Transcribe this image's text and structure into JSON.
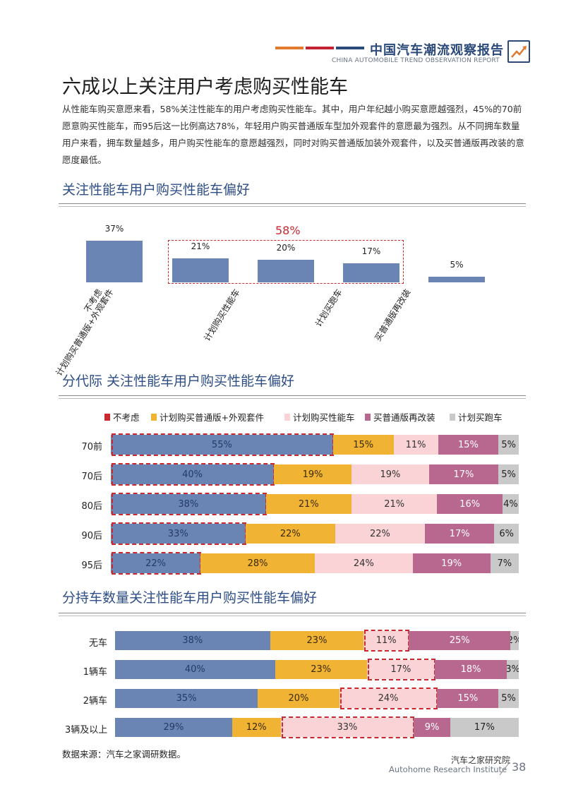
{
  "header": {
    "title": "中国汽车潮流观察报告",
    "subtitle": "CHINA AUTOMOBILE TREND OBSERVATION REPORT",
    "stripe_colors": [
      "#e07a2e",
      "#c52234",
      "#2b4a7a"
    ],
    "logo_icon": "trend-up-arrow-icon"
  },
  "page_title": "六成以上关注用户考虑购买性能车",
  "paragraph": "从性能车购买意愿来看，58%关注性能车的用户考虑购买性能车。其中，用户年纪越小购买意愿越强烈，45%的70前愿意购买性能车，而95后这一比例高达78%，年轻用户购买普通版车型加外观套件的意愿最为强烈。从不同拥车数量用户来看，拥车数量越多，用户购买性能车的意愿越强烈，同时对购买普通版加装外观套件，以及买普通版再改装的意愿度最低。",
  "colors": {
    "blue": "#6a85b4",
    "yellow": "#f0b334",
    "pink": "#f9d3d5",
    "mauve": "#b8688f",
    "gray": "#c9c9c9",
    "highlight_red": "#c8282e",
    "title_blue": "#2e4e86"
  },
  "charts_text": {
    "c1_title": "关注性能车用户购买性能车偏好",
    "c1_group_label": "58%",
    "c2_title": "分代际  关注性能车用户购买性能车偏好",
    "c3_title": "分持车数量关注性能车用户购买性能车偏好"
  },
  "chart_data": [
    {
      "type": "bar",
      "title": "关注性能车用户购买性能车偏好",
      "categories": [
        "不考虑",
        "计划购买普通版+外观套件",
        "计划购买性能车",
        "计划买跑车",
        "买普通版再改装"
      ],
      "values": [
        37,
        21,
        20,
        17,
        5
      ],
      "value_labels": [
        "37%",
        "21%",
        "20%",
        "17%",
        "5%"
      ],
      "unit": "%",
      "annotation": {
        "text": "58%",
        "covers": [
          "计划购买普通版+外观套件",
          "计划购买性能车",
          "计划买跑车"
        ]
      }
    },
    {
      "type": "bar",
      "stacked": true,
      "orientation": "horizontal",
      "title": "分代际  关注性能车用户购买性能车偏好",
      "legend": [
        "不考虑",
        "计划购买普通版+外观套件",
        "计划购买性能车",
        "买普通版再改装",
        "计划买跑车"
      ],
      "legend_placement": "top",
      "categories": [
        "70前",
        "70后",
        "80后",
        "90后",
        "95后"
      ],
      "series": [
        {
          "name": "不考虑",
          "values": [
            55,
            40,
            38,
            33,
            22
          ]
        },
        {
          "name": "计划购买普通版+外观套件",
          "values": [
            15,
            19,
            21,
            22,
            28
          ]
        },
        {
          "name": "计划购买性能车",
          "values": [
            11,
            19,
            21,
            22,
            24
          ]
        },
        {
          "name": "买普通版再改装",
          "values": [
            15,
            17,
            16,
            17,
            19
          ]
        },
        {
          "name": "计划买跑车",
          "values": [
            5,
            5,
            4,
            6,
            7
          ]
        }
      ],
      "highlighted_series": "不考虑"
    },
    {
      "type": "bar",
      "stacked": true,
      "orientation": "horizontal",
      "title": "分持车数量关注性能车用户购买性能车偏好",
      "categories": [
        "无车",
        "1辆车",
        "2辆车",
        "3辆及以上"
      ],
      "series": [
        {
          "name": "不考虑",
          "values": [
            38,
            40,
            35,
            29
          ]
        },
        {
          "name": "计划购买普通版+外观套件",
          "values": [
            23,
            23,
            20,
            12
          ]
        },
        {
          "name": "计划购买性能车",
          "values": [
            11,
            17,
            24,
            33
          ]
        },
        {
          "name": "买普通版再改装",
          "values": [
            25,
            18,
            15,
            9
          ]
        },
        {
          "name": "计划买跑车",
          "values": [
            2,
            3,
            5,
            17
          ]
        }
      ],
      "highlighted_series": "计划购买性能车"
    }
  ],
  "footer": {
    "source": "数据来源：汽车之家调研数据。",
    "institute_cn": "汽车之家研究院",
    "institute_en": "Autohome Research Institute",
    "page_number": "38"
  }
}
